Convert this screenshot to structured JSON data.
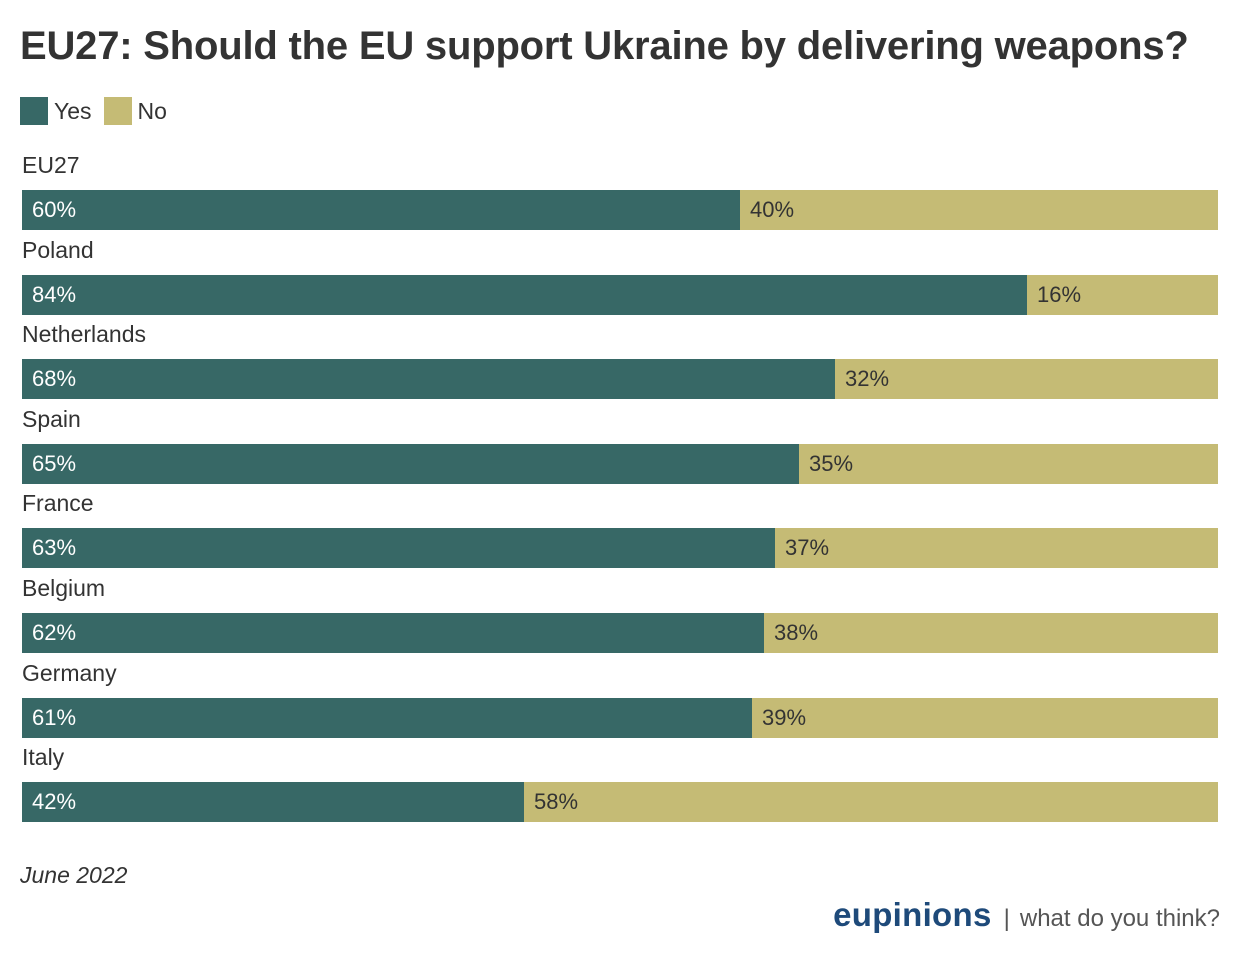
{
  "colors": {
    "yes": "#376866",
    "no": "#c5bb75",
    "yes_text": "#ffffff",
    "no_text": "#333333",
    "brand": "#1e4a7a"
  },
  "chart_data": {
    "type": "bar",
    "orientation": "horizontal",
    "stacked": true,
    "title": "EU27: Should the EU support Ukraine by delivering weapons?",
    "legend_position": "top-left",
    "categories": [
      "EU27",
      "Poland",
      "Netherlands",
      "Spain",
      "France",
      "Belgium",
      "Germany",
      "Italy"
    ],
    "series": [
      {
        "name": "Yes",
        "values": [
          60,
          84,
          68,
          65,
          63,
          62,
          61,
          42
        ]
      },
      {
        "name": "No",
        "values": [
          40,
          16,
          32,
          35,
          37,
          38,
          39,
          58
        ]
      }
    ],
    "value_suffix": "%",
    "xlim": [
      0,
      100
    ],
    "grid": false
  },
  "footnote": "June 2022",
  "brand": {
    "name": "eupinions",
    "separator": "|",
    "tagline": "what do you think?"
  }
}
